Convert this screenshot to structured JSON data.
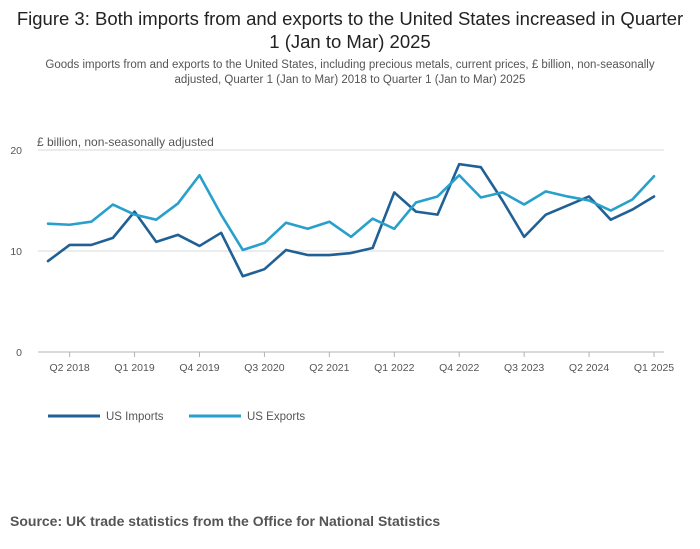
{
  "header": {
    "title": "Figure 3: Both imports from and exports to the United States increased in Quarter 1 (Jan to Mar) 2025",
    "subtitle": "Goods imports from and exports to the United States, including precious metals, current prices, £ billion, non-seasonally adjusted, Quarter 1 (Jan to Mar) 2018 to Quarter 1 (Jan to Mar) 2025"
  },
  "footer": {
    "source": "Source: UK trade statistics from the Office for National Statistics"
  },
  "colors": {
    "imports": "#206095",
    "exports": "#27a0cc",
    "grid": "#d9d9d9",
    "axis_text": "#555555"
  },
  "chart_data": {
    "type": "line",
    "title": "Figure 3: Both imports from and exports to the United States increased in Quarter 1 (Jan to Mar) 2025",
    "ylabel": "£ billion, non-seasonally adjusted",
    "xlabel": "",
    "ylim": [
      0,
      20
    ],
    "yticks": [
      0,
      10,
      20
    ],
    "grid": true,
    "legend_position": "bottom-left",
    "categories": [
      "Q1 2018",
      "Q2 2018",
      "Q3 2018",
      "Q4 2018",
      "Q1 2019",
      "Q2 2019",
      "Q3 2019",
      "Q4 2019",
      "Q1 2020",
      "Q2 2020",
      "Q3 2020",
      "Q4 2020",
      "Q1 2021",
      "Q2 2021",
      "Q3 2021",
      "Q4 2021",
      "Q1 2022",
      "Q2 2022",
      "Q3 2022",
      "Q4 2022",
      "Q1 2023",
      "Q2 2023",
      "Q3 2023",
      "Q4 2023",
      "Q1 2024",
      "Q2 2024",
      "Q3 2024",
      "Q4 2024",
      "Q1 2025"
    ],
    "tick_labels": [
      "Q2 2018",
      "Q1 2019",
      "Q4 2019",
      "Q3 2020",
      "Q2 2021",
      "Q1 2022",
      "Q4 2022",
      "Q3 2023",
      "Q2 2024",
      "Q1 2025"
    ],
    "series": [
      {
        "name": "US Imports",
        "key": "imports",
        "values": [
          9.0,
          10.6,
          10.6,
          11.3,
          13.9,
          10.9,
          11.6,
          10.5,
          11.8,
          7.5,
          8.2,
          10.1,
          9.6,
          9.6,
          9.8,
          10.3,
          15.8,
          13.9,
          13.6,
          18.6,
          18.3,
          15.0,
          11.4,
          13.6,
          14.5,
          15.4,
          13.1,
          14.1,
          15.4
        ]
      },
      {
        "name": "US Exports",
        "key": "exports",
        "values": [
          12.7,
          12.6,
          12.9,
          14.6,
          13.6,
          13.1,
          14.7,
          17.5,
          13.6,
          10.1,
          10.8,
          12.8,
          12.2,
          12.9,
          11.4,
          13.2,
          12.2,
          14.8,
          15.4,
          17.5,
          15.3,
          15.8,
          14.6,
          15.9,
          15.4,
          15.0,
          14.0,
          15.1,
          17.4
        ]
      }
    ]
  }
}
